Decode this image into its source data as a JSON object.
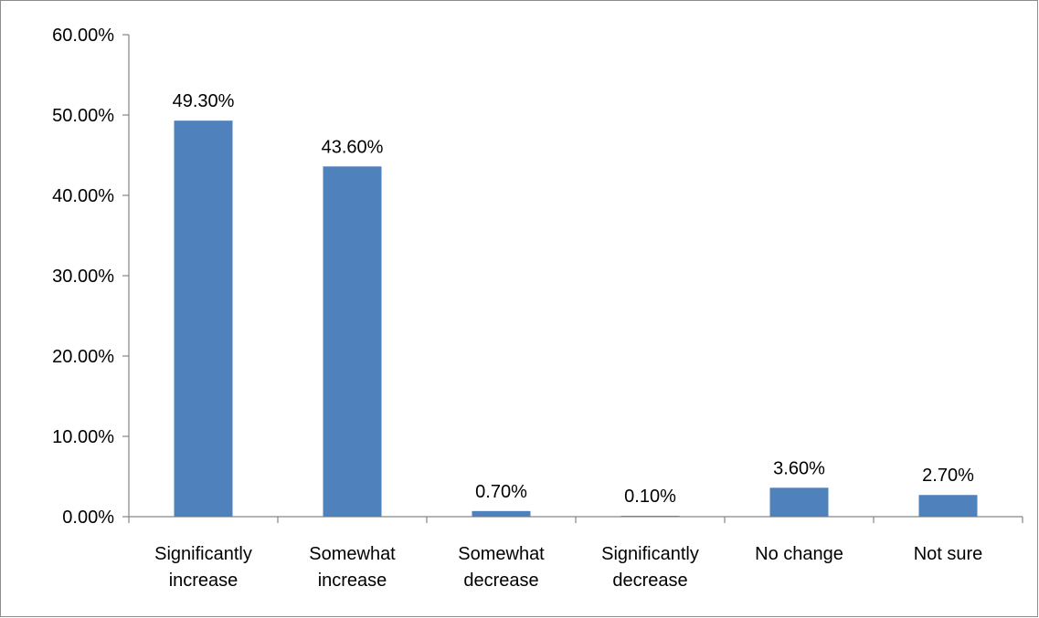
{
  "chart_data": {
    "type": "bar",
    "title": "",
    "xlabel": "",
    "ylabel": "",
    "categories": [
      [
        "Significantly",
        "increase"
      ],
      [
        "Somewhat",
        "increase"
      ],
      [
        "Somewhat",
        "decrease"
      ],
      [
        "Significantly",
        "decrease"
      ],
      [
        "No change"
      ],
      [
        "Not sure"
      ]
    ],
    "values": [
      49.3,
      43.6,
      0.7,
      0.1,
      3.6,
      2.7
    ],
    "data_labels": [
      "49.30%",
      "43.60%",
      "0.70%",
      "0.10%",
      "3.60%",
      "2.70%"
    ],
    "ylim": [
      0,
      60
    ],
    "yticks": [
      0,
      10,
      20,
      30,
      40,
      50,
      60
    ],
    "ytick_labels": [
      "0.00%",
      "10.00%",
      "20.00%",
      "30.00%",
      "40.00%",
      "50.00%",
      "60.00%"
    ],
    "grid": false,
    "legend": "none",
    "colors": {
      "bar": "#4F81BD",
      "axis": "#868686",
      "border": "#8C8C8C"
    }
  }
}
